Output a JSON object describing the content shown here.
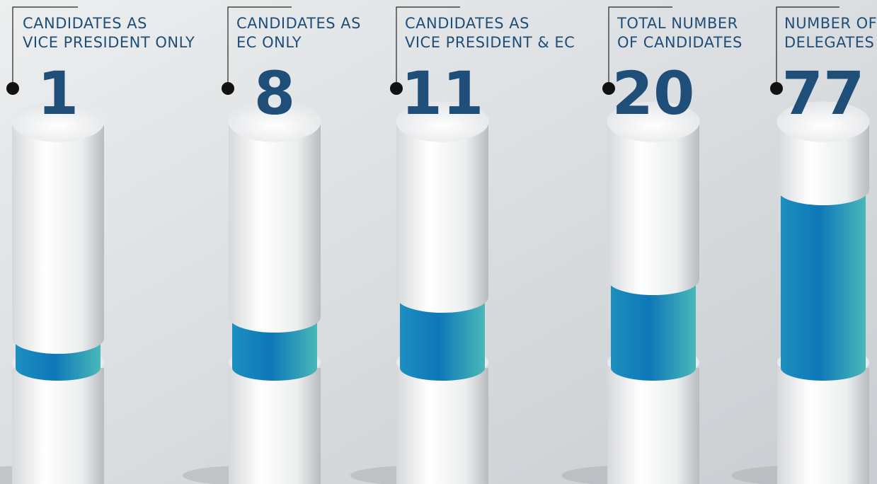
{
  "items": [
    {
      "label": [
        "CANDIDATES AS",
        "VICE PRESIDENT ONLY"
      ],
      "value": 1
    },
    {
      "label": [
        "CANDIDATES AS",
        "EC ONLY"
      ],
      "value": 8
    },
    {
      "label": [
        "CANDIDATES AS",
        "VICE PRESIDENT & EC"
      ],
      "value": 11
    },
    {
      "label": [
        "TOTAL NUMBER",
        "OF CANDIDATES"
      ],
      "value": 20
    },
    {
      "label": [
        "NUMBER OF",
        "DELEGATES"
      ],
      "value": 77
    }
  ]
}
